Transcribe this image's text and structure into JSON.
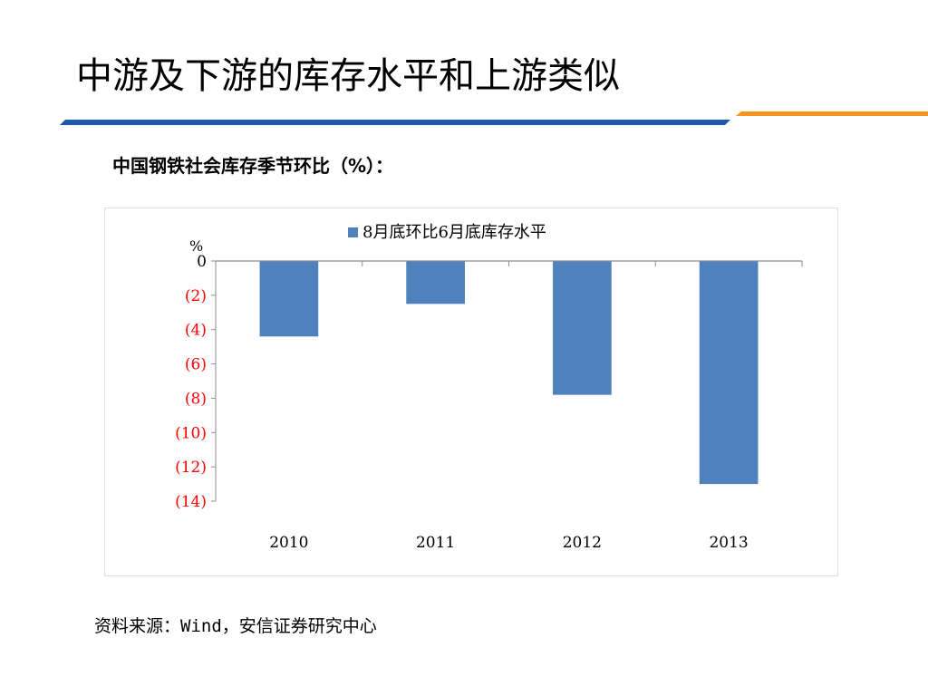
{
  "slide": {
    "title": "中游及下游的库存水平和上游类似",
    "subtitle": "中国钢铁社会库存季节环比（%）：",
    "source_prefix": "资料来源：",
    "source_mono": "Wind，",
    "source_suffix": "安信证券研究中心"
  },
  "colors": {
    "bar": "#4f81bd",
    "negative_tick": "#ff0000",
    "rule_blue": "#1f5aa6",
    "rule_orange": "#f7941d"
  },
  "chart_data": {
    "type": "bar",
    "categories": [
      "2010",
      "2011",
      "2012",
      "2013"
    ],
    "series": [
      {
        "name": "8月底环比6月底库存水平",
        "values": [
          -4.4,
          -2.5,
          -7.8,
          -13.0
        ]
      }
    ],
    "ylabel": "%",
    "ylim": [
      -14,
      0
    ],
    "yticks": [
      0,
      -2,
      -4,
      -6,
      -8,
      -10,
      -12,
      -14
    ],
    "ytick_labels": [
      "0",
      "(2)",
      "(4)",
      "(6)",
      "(8)",
      "(10)",
      "(12)",
      "(14)"
    ],
    "grid": false,
    "legend": "top-center"
  }
}
